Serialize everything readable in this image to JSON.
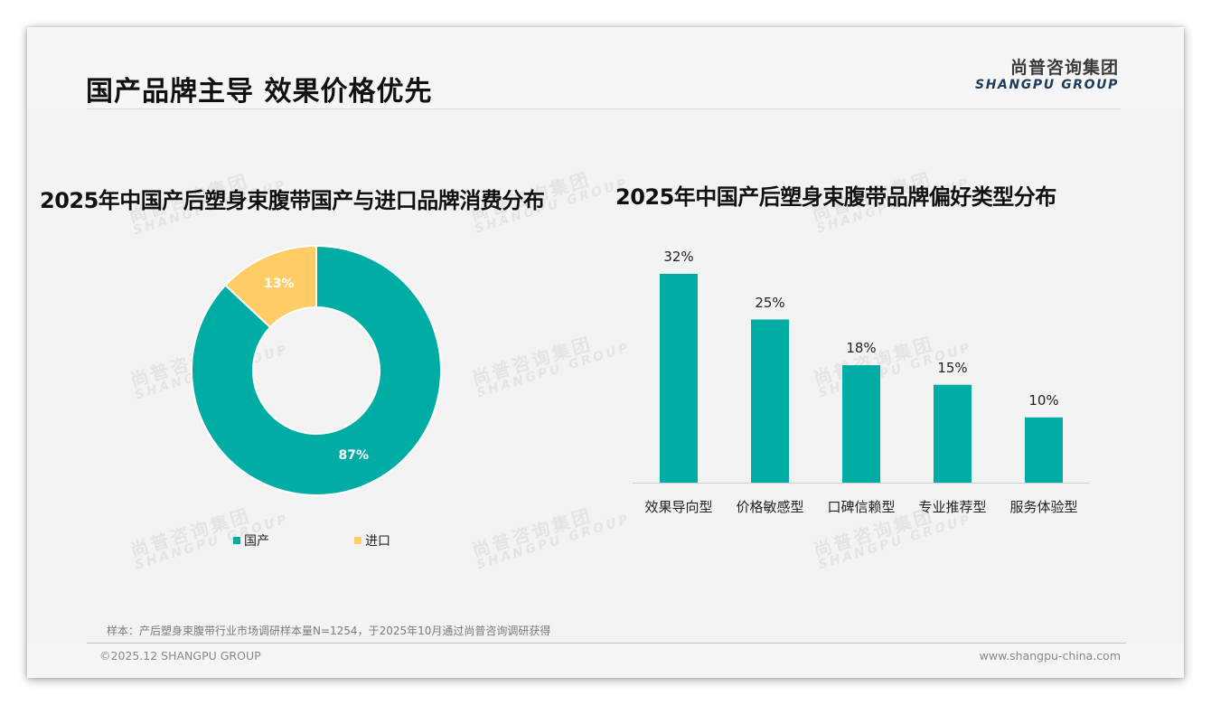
{
  "page": {
    "title": "国产品牌主导 效果价格优先",
    "logo_cn": "尚普咨询集团",
    "logo_en": "SHANGPU GROUP",
    "watermark_cn": "尚普咨询集团",
    "watermark_en": "SHANGPU GROUP",
    "note": "样本：产后塑身束腹带行业市场调研样本量N=1254，于2025年10月通过尚普咨询调研获得",
    "copyright": "©2025.12 SHANGPU GROUP",
    "website": "www.shangpu-china.com"
  },
  "colors": {
    "teal": "#00ADA5",
    "yellow": "#FFCC66"
  },
  "chart_data": [
    {
      "type": "pie",
      "variant": "donut",
      "title": "2025年中国产后塑身束腹带国产与进口品牌消费分布",
      "categories": [
        "国产",
        "进口"
      ],
      "values": [
        87,
        13
      ],
      "labels": [
        "87%",
        "13%"
      ],
      "colors": [
        "#00ADA5",
        "#FFCC66"
      ],
      "legend_position": "bottom"
    },
    {
      "type": "bar",
      "title": "2025年中国产后塑身束腹带品牌偏好类型分布",
      "categories": [
        "效果导向型",
        "价格敏感型",
        "口碑信赖型",
        "专业推荐型",
        "服务体验型"
      ],
      "values": [
        32,
        25,
        18,
        15,
        10
      ],
      "labels": [
        "32%",
        "25%",
        "18%",
        "15%",
        "10%"
      ],
      "unit": "%",
      "color": "#00ADA5",
      "xlabel": "",
      "ylabel": "",
      "grid": false,
      "legend": false
    }
  ]
}
